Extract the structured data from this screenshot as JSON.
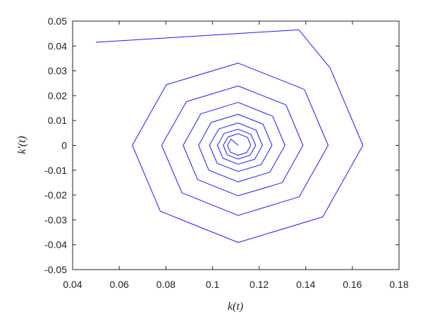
{
  "chart_data": {
    "type": "line",
    "x_label": "k(t)",
    "y_label": "k′(t)",
    "color": "#1a1aff",
    "xlim": [
      0.04,
      0.18
    ],
    "xticks": [
      0.04,
      0.06,
      0.08,
      0.1,
      0.12,
      0.14,
      0.16,
      0.18
    ],
    "ylim": [
      -0.05,
      0.05
    ],
    "yticks": [
      -0.05,
      -0.04,
      -0.03,
      -0.02,
      -0.01,
      0,
      0.01,
      0.02,
      0.03,
      0.04,
      0.05
    ],
    "x": [
      0.05,
      0.137,
      0.1504,
      0.1645,
      0.1473,
      0.111,
      0.0776,
      0.0656,
      0.0802,
      0.111,
      0.1394,
      0.1496,
      0.1372,
      0.111,
      0.0869,
      0.0782,
      0.0888,
      0.111,
      0.1315,
      0.1388,
      0.1299,
      0.111,
      0.0936,
      0.0874,
      0.095,
      0.111,
      0.1258,
      0.1311,
      0.1246,
      0.111,
      0.0984,
      0.094,
      0.0994,
      0.111,
      0.1217,
      0.1255,
      0.1208,
      0.111,
      0.102,
      0.0987,
      0.1027,
      0.111,
      0.1187,
      0.1214,
      0.1181,
      0.111,
      0.1045,
      0.1021,
      0.105,
      0.111,
      0.1165,
      0.1185,
      0.1161,
      0.111,
      0.1063,
      0.1046,
      0.1067,
      0.111,
      0.115,
      0.1164,
      0.1147,
      0.111,
      0.1076,
      0.1064,
      0.1079,
      0.111
    ],
    "values": [
      0.0415,
      0.0465,
      0.0312,
      0,
      -0.0288,
      -0.0391,
      -0.0265,
      0,
      0.0244,
      0.0331,
      0.0225,
      0,
      -0.0207,
      -0.0282,
      -0.0191,
      0,
      0.0176,
      0.0239,
      0.0163,
      0,
      -0.015,
      -0.0203,
      -0.0138,
      0,
      0.0127,
      0.0173,
      0.0117,
      0,
      -0.0108,
      -0.0147,
      -0.01,
      0,
      0.0092,
      0.0125,
      0.0085,
      0,
      -0.0078,
      -0.0105,
      -0.0072,
      0,
      0.0066,
      0.009,
      0.0061,
      0,
      -0.0056,
      -0.0076,
      -0.0052,
      0,
      0.0048,
      0.0065,
      0.0044,
      0,
      -0.004,
      -0.0055,
      -0.0038,
      0,
      0.0034,
      0.0047,
      0.0032,
      0,
      -0.0029,
      -0.004,
      -0.0027,
      0,
      0.0025,
      0
    ]
  }
}
